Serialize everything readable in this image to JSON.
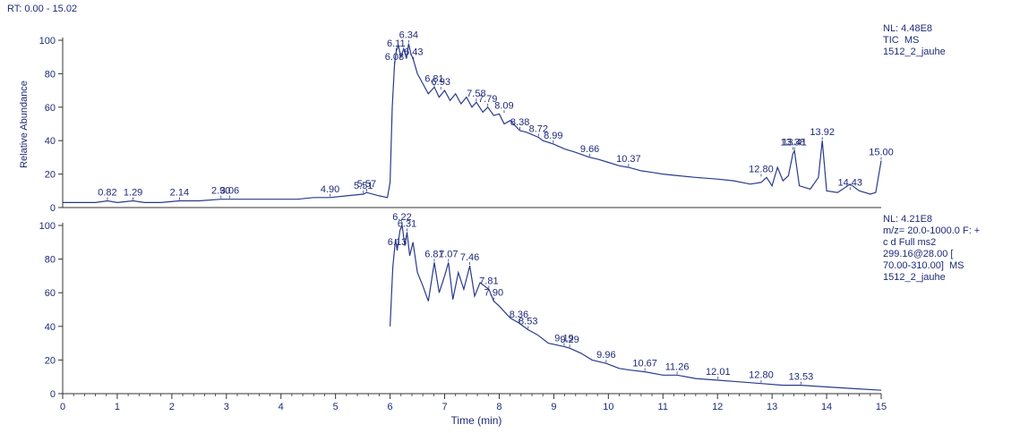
{
  "chart_data": {
    "type": "line",
    "rt_range_label": "RT: 0.00 - 15.02",
    "xlabel": "Time (min)",
    "ylabel": "Relative Abundance",
    "xlim": [
      0,
      15
    ],
    "x_ticks": [
      "0",
      "1",
      "2",
      "3",
      "4",
      "5",
      "6",
      "7",
      "8",
      "9",
      "10",
      "11",
      "12",
      "13",
      "14",
      "15"
    ],
    "y_ticks": [
      "0",
      "20",
      "40",
      "60",
      "80",
      "100"
    ],
    "ylim": [
      0,
      100
    ],
    "color": "#2a3a8c",
    "panels": [
      {
        "info": [
          "NL: 4.48E8",
          "TIC  MS",
          "1512_2_jauhe"
        ],
        "x": [
          0,
          0.3,
          0.6,
          0.82,
          1.0,
          1.29,
          1.5,
          1.8,
          2.14,
          2.5,
          2.9,
          3.06,
          3.4,
          3.7,
          4.0,
          4.3,
          4.6,
          4.9,
          5.2,
          5.51,
          5.57,
          5.8,
          5.95,
          6.0,
          6.04,
          6.08,
          6.11,
          6.15,
          6.2,
          6.25,
          6.3,
          6.34,
          6.38,
          6.43,
          6.5,
          6.6,
          6.7,
          6.81,
          6.9,
          7.0,
          7.1,
          7.2,
          7.3,
          7.4,
          7.5,
          7.58,
          7.7,
          7.79,
          7.9,
          8.0,
          8.09,
          8.2,
          8.38,
          8.5,
          8.72,
          8.8,
          8.99,
          9.2,
          9.4,
          9.66,
          9.8,
          10.0,
          10.2,
          10.37,
          10.6,
          10.8,
          11.0,
          11.3,
          11.6,
          12.0,
          12.3,
          12.6,
          12.8,
          12.9,
          13.0,
          13.1,
          13.2,
          13.3,
          13.38,
          13.41,
          13.5,
          13.7,
          13.85,
          13.92,
          14.0,
          14.2,
          14.43,
          14.6,
          14.8,
          14.9,
          15.0
        ],
        "y": [
          3,
          3,
          3,
          4,
          3,
          4,
          3,
          3,
          4,
          4,
          5,
          5,
          5,
          5,
          5,
          5,
          6,
          6,
          7,
          8,
          9,
          7,
          6,
          15,
          60,
          85,
          93,
          97,
          90,
          95,
          89,
          98,
          92,
          88,
          80,
          74,
          68,
          72,
          66,
          70,
          64,
          68,
          62,
          66,
          60,
          63,
          57,
          60,
          55,
          56,
          50,
          52,
          46,
          45,
          42,
          40,
          38,
          35,
          33,
          30,
          29,
          27,
          25,
          24,
          22,
          21,
          20,
          19,
          18,
          17,
          16,
          14,
          15,
          18,
          13,
          24,
          16,
          19,
          32,
          34,
          13,
          11,
          18,
          40,
          10,
          9,
          14,
          10,
          8,
          9,
          28
        ],
        "peak_labels": [
          {
            "label": "0.82",
            "x": 0.82,
            "y": 4
          },
          {
            "label": "1.29",
            "x": 1.29,
            "y": 4
          },
          {
            "label": "2.14",
            "x": 2.14,
            "y": 4
          },
          {
            "label": "2.90",
            "x": 2.9,
            "y": 5
          },
          {
            "label": "3.06",
            "x": 3.06,
            "y": 5
          },
          {
            "label": "4.90",
            "x": 4.9,
            "y": 6
          },
          {
            "label": "5.51",
            "x": 5.51,
            "y": 8
          },
          {
            "label": "5.57",
            "x": 5.57,
            "y": 9
          },
          {
            "label": "6.11",
            "x": 6.11,
            "y": 93
          },
          {
            "label": "6.34",
            "x": 6.34,
            "y": 98
          },
          {
            "label": "6.08",
            "x": 6.08,
            "y": 85
          },
          {
            "label": "6.43",
            "x": 6.43,
            "y": 88
          },
          {
            "label": "6.81",
            "x": 6.81,
            "y": 72
          },
          {
            "label": "6.93",
            "x": 6.93,
            "y": 70
          },
          {
            "label": "7.58",
            "x": 7.58,
            "y": 63
          },
          {
            "label": "7.79",
            "x": 7.79,
            "y": 60
          },
          {
            "label": "8.09",
            "x": 8.09,
            "y": 56
          },
          {
            "label": "8.38",
            "x": 8.38,
            "y": 46
          },
          {
            "label": "8.72",
            "x": 8.72,
            "y": 42
          },
          {
            "label": "8.99",
            "x": 8.99,
            "y": 38
          },
          {
            "label": "9.66",
            "x": 9.66,
            "y": 30
          },
          {
            "label": "10.37",
            "x": 10.37,
            "y": 24
          },
          {
            "label": "12.80",
            "x": 12.8,
            "y": 18
          },
          {
            "label": "13.38",
            "x": 13.38,
            "y": 34
          },
          {
            "label": "13.41",
            "x": 13.41,
            "y": 34
          },
          {
            "label": "13.92",
            "x": 13.92,
            "y": 40
          },
          {
            "label": "14.43",
            "x": 14.43,
            "y": 10
          },
          {
            "label": "15.00",
            "x": 15.0,
            "y": 28
          }
        ]
      },
      {
        "info": [
          "NL: 4.21E8",
          "m/z= 20.0-1000.0 F: +",
          "c d Full ms2",
          "299.16@28.00 [",
          "70.00-310.00]  MS",
          "1512_2_jauhe"
        ],
        "x": [
          6.0,
          6.05,
          6.1,
          6.13,
          6.18,
          6.22,
          6.27,
          6.31,
          6.36,
          6.42,
          6.5,
          6.6,
          6.7,
          6.81,
          6.9,
          7.0,
          7.07,
          7.15,
          7.25,
          7.35,
          7.46,
          7.55,
          7.65,
          7.81,
          7.9,
          8.0,
          8.2,
          8.36,
          8.53,
          8.7,
          8.9,
          9.19,
          9.29,
          9.5,
          9.7,
          9.96,
          10.2,
          10.4,
          10.67,
          11.0,
          11.26,
          11.6,
          12.01,
          12.4,
          12.8,
          13.2,
          13.53,
          14.0,
          14.5,
          15.0
        ],
        "y": [
          40,
          75,
          92,
          85,
          97,
          100,
          88,
          96,
          82,
          90,
          72,
          64,
          55,
          78,
          60,
          70,
          78,
          56,
          72,
          62,
          76,
          58,
          66,
          62,
          55,
          52,
          45,
          42,
          38,
          35,
          30,
          28,
          27,
          24,
          20,
          18,
          15,
          14,
          13,
          11,
          11,
          9,
          8,
          7,
          6,
          5,
          5,
          4,
          3,
          2
        ],
        "peak_labels": [
          {
            "label": "6.13",
            "x": 6.13,
            "y": 85
          },
          {
            "label": "6.22",
            "x": 6.22,
            "y": 100
          },
          {
            "label": "6.31",
            "x": 6.31,
            "y": 96
          },
          {
            "label": "6.81",
            "x": 6.81,
            "y": 78
          },
          {
            "label": "7.07",
            "x": 7.07,
            "y": 78
          },
          {
            "label": "7.46",
            "x": 7.46,
            "y": 76
          },
          {
            "label": "7.81",
            "x": 7.81,
            "y": 62
          },
          {
            "label": "7.90",
            "x": 7.9,
            "y": 55
          },
          {
            "label": "8.36",
            "x": 8.36,
            "y": 42
          },
          {
            "label": "8.53",
            "x": 8.53,
            "y": 38
          },
          {
            "label": "9.19",
            "x": 9.19,
            "y": 28
          },
          {
            "label": "9.29",
            "x": 9.29,
            "y": 27
          },
          {
            "label": "9.96",
            "x": 9.96,
            "y": 18
          },
          {
            "label": "10.67",
            "x": 10.67,
            "y": 13
          },
          {
            "label": "11.26",
            "x": 11.26,
            "y": 11
          },
          {
            "label": "12.01",
            "x": 12.01,
            "y": 8
          },
          {
            "label": "12.80",
            "x": 12.8,
            "y": 6
          },
          {
            "label": "13.53",
            "x": 13.53,
            "y": 5
          }
        ]
      }
    ]
  }
}
